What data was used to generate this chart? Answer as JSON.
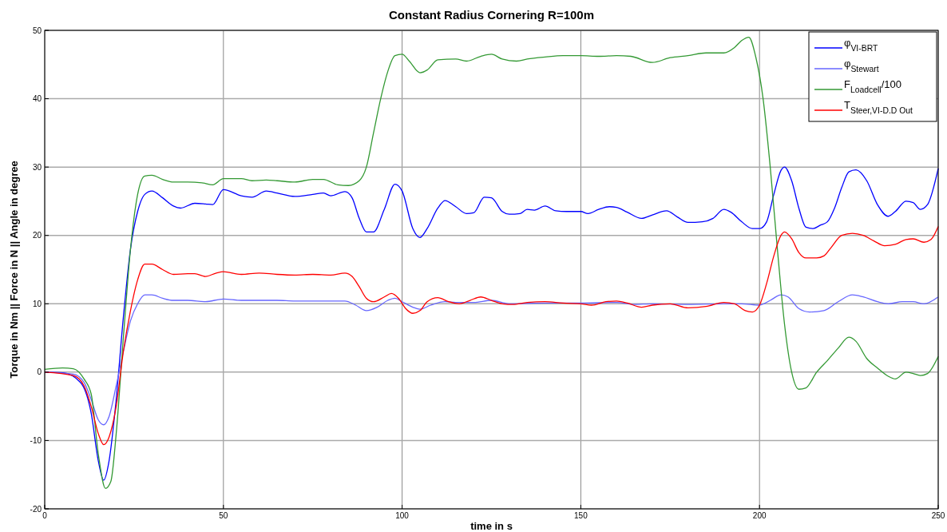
{
  "chart_data": {
    "type": "line",
    "title": "Constant Radius Cornering R=100m",
    "xlabel": "time in s",
    "ylabel": "Torque in Nm || Force in N || Angle in degree",
    "xlim": [
      0,
      250
    ],
    "ylim": [
      -20,
      50
    ],
    "xticks": [
      0,
      50,
      100,
      150,
      200,
      250
    ],
    "yticks": [
      -20,
      -10,
      0,
      10,
      20,
      30,
      40,
      50
    ],
    "grid": true,
    "legend": "top right",
    "series": [
      {
        "name": "φ$_{VI-BRT}$",
        "color": "#0000ff",
        "x": [
          0,
          5,
          10,
          13,
          15,
          16.5,
          18,
          20,
          22,
          24,
          26,
          28,
          30,
          33,
          36,
          38,
          42,
          45,
          47,
          50,
          55,
          58,
          62,
          65,
          70,
          75,
          78,
          80,
          84,
          86,
          88,
          90,
          92,
          95,
          98,
          100,
          103,
          105,
          107,
          110,
          112,
          115,
          118,
          120,
          123,
          125,
          128,
          130,
          133,
          135,
          137,
          140,
          143,
          146,
          150,
          152,
          155,
          158,
          160,
          163,
          167,
          170,
          174,
          177,
          180,
          184,
          187,
          190,
          192,
          195,
          198,
          200,
          202,
          204,
          206,
          207,
          209,
          211,
          213,
          215,
          217,
          219,
          221,
          223,
          225,
          227,
          230,
          233,
          236,
          238,
          241,
          243,
          245,
          247,
          250
        ],
        "values": [
          0,
          -0.1,
          -1.5,
          -6,
          -13,
          -15.8,
          -13,
          -4,
          8,
          18,
          23.5,
          26,
          26.5,
          25.5,
          24.3,
          24,
          24.7,
          24.6,
          24.5,
          26.7,
          25.8,
          25.6,
          26.5,
          26.2,
          25.7,
          26,
          26.2,
          25.8,
          26.4,
          25.5,
          22.5,
          20.5,
          20.5,
          23.8,
          27.5,
          26.5,
          21,
          19.7,
          21,
          24,
          25.1,
          24.2,
          23.2,
          23.3,
          25.6,
          25.5,
          23.5,
          23.1,
          23.2,
          23.8,
          23.7,
          24.3,
          23.6,
          23.5,
          23.5,
          23.2,
          23.8,
          24.2,
          24.1,
          23.4,
          22.5,
          23,
          23.6,
          22.7,
          21.9,
          22,
          22.5,
          23.8,
          23.4,
          22,
          21,
          21,
          22,
          26,
          29.5,
          30,
          28,
          24,
          21.2,
          21,
          21.5,
          22,
          24,
          27,
          29.3,
          29.6,
          28,
          24.5,
          22.8,
          23.5,
          25,
          24.8,
          23.8,
          24.5,
          29.8
        ]
      },
      {
        "name": "φ$_{Stewart}$",
        "color": "#6666ff",
        "x": [
          0,
          8,
          11,
          13,
          15,
          16.5,
          18,
          20,
          22,
          24,
          26,
          28,
          30,
          33,
          36,
          40,
          45,
          50,
          55,
          60,
          65,
          70,
          75,
          80,
          84,
          87,
          90,
          93,
          96,
          98,
          100,
          103,
          105,
          108,
          112,
          115,
          120,
          125,
          130,
          140,
          150,
          160,
          165,
          170,
          180,
          190,
          195,
          200,
          203,
          206,
          208,
          211,
          214,
          218,
          222,
          226,
          229,
          233,
          236,
          240,
          243,
          246,
          250
        ],
        "values": [
          0,
          -0.3,
          -1.5,
          -4,
          -7,
          -7.7,
          -6.5,
          -2,
          3,
          7.5,
          10,
          11.3,
          11.3,
          10.8,
          10.5,
          10.5,
          10.3,
          10.7,
          10.5,
          10.5,
          10.5,
          10.4,
          10.4,
          10.4,
          10.4,
          9.8,
          9,
          9.5,
          10.5,
          10.8,
          10.3,
          9.5,
          9.2,
          9.8,
          10.3,
          10.2,
          10.2,
          10.5,
          10,
          10.1,
          10.1,
          10.2,
          9.9,
          10,
          9.9,
          10,
          10,
          9.8,
          10.5,
          11.3,
          11,
          9.3,
          8.8,
          9,
          10.3,
          11.3,
          11,
          10.3,
          10,
          10.3,
          10.3,
          10,
          11
        ]
      },
      {
        "name": "F$_{Loadcell}$/100",
        "color": "#339933",
        "x": [
          0,
          5,
          8,
          11,
          13,
          15,
          17,
          18.5,
          20,
          22,
          24,
          26,
          28,
          30,
          33,
          36,
          40,
          44,
          47,
          50,
          55,
          58,
          62,
          65,
          70,
          75,
          78,
          82,
          85,
          88,
          90,
          92,
          94,
          96,
          98,
          100,
          102,
          105,
          107,
          110,
          115,
          118,
          122,
          125,
          128,
          132,
          135,
          140,
          145,
          150,
          155,
          160,
          164,
          170,
          175,
          180,
          185,
          190,
          193,
          195,
          197,
          199,
          201,
          203,
          205,
          207,
          209,
          211,
          213,
          216,
          219,
          222,
          225,
          227,
          230,
          233,
          236,
          238,
          241,
          243,
          245,
          247,
          250
        ],
        "values": [
          0.4,
          0.6,
          0.5,
          -1,
          -3.2,
          -12,
          -17,
          -16,
          -9,
          5,
          18,
          26,
          28.7,
          28.8,
          28.2,
          27.8,
          27.8,
          27.7,
          27.4,
          28.3,
          28.3,
          28,
          28.1,
          28,
          27.8,
          28.2,
          28.2,
          27.4,
          27.3,
          28,
          30,
          35,
          40,
          44,
          46.3,
          46.5,
          45.5,
          43.8,
          44.2,
          45.7,
          45.8,
          45.5,
          46.2,
          46.5,
          45.8,
          45.5,
          45.8,
          46.1,
          46.3,
          46.3,
          46.2,
          46.3,
          46.2,
          45.3,
          46,
          46.3,
          46.7,
          46.7,
          47.5,
          48.5,
          49,
          46,
          40,
          30,
          18,
          7,
          0,
          -2.5,
          -2.3,
          0,
          1.7,
          3.5,
          5.1,
          4.5,
          2,
          0.6,
          -0.6,
          -1,
          0,
          -0.2,
          -0.5,
          -0.2,
          2.3
        ]
      },
      {
        "name": "T$_{Steer,VI-D.D Out}$",
        "color": "#ff0000",
        "x": [
          0,
          8,
          11,
          13,
          15,
          16.5,
          18,
          20,
          22,
          24,
          26,
          28,
          30,
          33,
          36,
          40,
          42,
          45,
          48,
          50,
          55,
          60,
          65,
          70,
          75,
          80,
          84,
          86,
          88,
          90,
          92,
          95,
          97,
          99,
          101,
          103,
          105,
          107,
          110,
          113,
          116,
          119,
          122,
          125,
          128,
          131,
          135,
          140,
          145,
          150,
          153,
          157,
          160,
          163,
          167,
          170,
          175,
          180,
          185,
          190,
          193,
          196,
          198,
          200,
          202,
          204,
          206,
          207,
          209,
          211,
          213,
          216,
          218,
          220,
          223,
          226,
          229,
          232,
          235,
          238,
          241,
          243,
          246,
          248,
          250
        ],
        "values": [
          0,
          -0.5,
          -2,
          -5,
          -9,
          -10.6,
          -9.5,
          -5,
          3,
          9,
          13.5,
          15.8,
          15.8,
          15,
          14.3,
          14.4,
          14.4,
          14,
          14.5,
          14.7,
          14.3,
          14.5,
          14.3,
          14.2,
          14.3,
          14.2,
          14.5,
          14,
          12.5,
          10.8,
          10.3,
          11,
          11.5,
          10.8,
          9.3,
          8.6,
          9,
          10.3,
          10.9,
          10.3,
          10,
          10.5,
          11,
          10.5,
          10,
          9.9,
          10.2,
          10.3,
          10.1,
          10,
          9.8,
          10.3,
          10.4,
          10.1,
          9.5,
          9.8,
          10,
          9.4,
          9.6,
          10.2,
          10,
          9,
          8.8,
          9.8,
          13,
          17,
          20,
          20.5,
          19.5,
          17.5,
          16.7,
          16.7,
          17,
          18.2,
          20,
          20.3,
          20,
          19.2,
          18.5,
          18.7,
          19.4,
          19.5,
          19,
          19.4,
          21.3
        ]
      }
    ]
  }
}
